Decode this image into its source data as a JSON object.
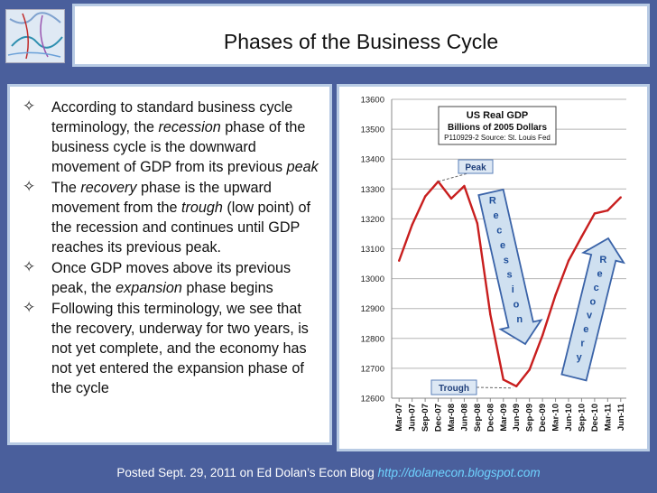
{
  "slide": {
    "title": "Phases of the Business Cycle",
    "bullets": [
      [
        {
          "t": "According to standard business cycle terminology, the "
        },
        {
          "t": "recession",
          "i": true
        },
        {
          "t": " phase of the business cycle is the downward movement of GDP from its previous "
        },
        {
          "t": "peak",
          "i": true
        }
      ],
      [
        {
          "t": "The "
        },
        {
          "t": "recovery",
          "i": true
        },
        {
          "t": " phase is the upward movement from the "
        },
        {
          "t": "trough",
          "i": true
        },
        {
          "t": " (low point) of the recession and continues until GDP reaches its previous peak."
        }
      ],
      [
        {
          "t": "Once GDP moves above its previous peak, the "
        },
        {
          "t": "expansion",
          "i": true
        },
        {
          "t": " phase begins"
        }
      ],
      [
        {
          "t": "Following this terminology, we see that the recovery, underway for two years, is not yet complete, and the economy has not yet entered the expansion phase of the cycle"
        }
      ]
    ],
    "bullet_icon": "diamond-outline-icon",
    "footer_text": "Posted Sept. 29, 2011 on Ed Dolan’s Econ Blog ",
    "footer_link": "http://dolanecon.blogspot.com"
  },
  "colors": {
    "background": "#4a5f9c",
    "panel_border": "#b8cbe4",
    "line": "#c81e1e",
    "arrow_fill": "#cfe0f0",
    "arrow_stroke": "#3a63a8",
    "footer_link": "#6fd3ff"
  },
  "chart_data": {
    "type": "line",
    "title": "US Real GDP",
    "subtitle": "Billions of 2005  Dollars",
    "source": "P110929-2 Source: St. Louis Fed",
    "ylim": [
      12600,
      13600
    ],
    "yticks": [
      12600,
      12700,
      12800,
      12900,
      13000,
      13100,
      13200,
      13300,
      13400,
      13500,
      13600
    ],
    "grid": true,
    "categories": [
      "Mar-07",
      "Jun-07",
      "Sep-07",
      "Dec-07",
      "Mar-08",
      "Jun-08",
      "Sep-08",
      "Dec-08",
      "Mar-09",
      "Jun-09",
      "Sep-09",
      "Dec-09",
      "Mar-10",
      "Jun-10",
      "Sep-10",
      "Dec-10",
      "Mar-11",
      "Jun-11"
    ],
    "series": [
      {
        "values": [
          13060,
          13180,
          13275,
          13325,
          13268,
          13310,
          13185,
          12880,
          12662,
          12640,
          12695,
          12810,
          12945,
          13060,
          13140,
          13218,
          13228,
          13272
        ]
      }
    ],
    "annotations": {
      "peak": "Peak",
      "trough": "Trough",
      "recession": [
        "R",
        "e",
        "c",
        "e",
        "s",
        "s",
        "i",
        "o",
        "n"
      ],
      "recovery": [
        "R",
        "e",
        "c",
        "o",
        "v",
        "e",
        "r",
        "y"
      ]
    }
  }
}
